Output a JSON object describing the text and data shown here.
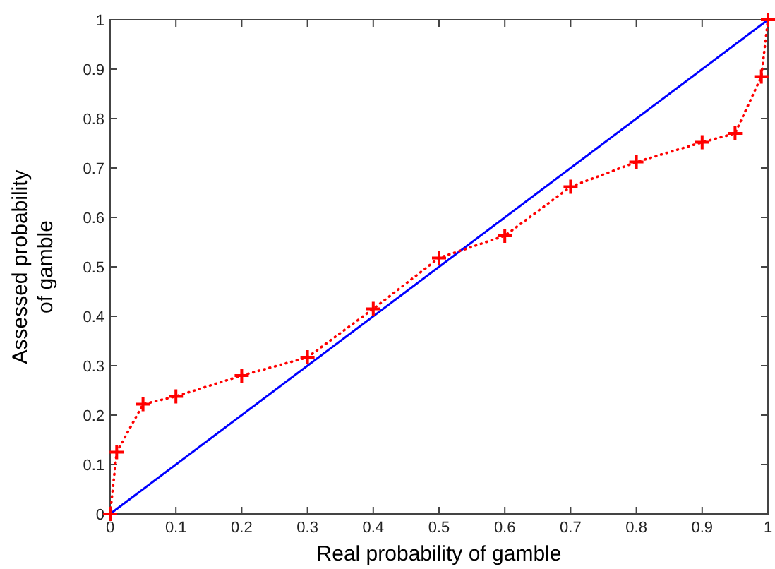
{
  "chart_data": {
    "type": "line",
    "xlabel": "Real probability of gamble",
    "ylabel": "Assessed probability\nof gamble",
    "xlim": [
      0,
      1
    ],
    "ylim": [
      0,
      1
    ],
    "xticks": [
      0,
      0.1,
      0.2,
      0.3,
      0.4,
      0.5,
      0.6,
      0.7,
      0.8,
      0.9,
      1
    ],
    "yticks": [
      0,
      0.1,
      0.2,
      0.3,
      0.4,
      0.5,
      0.6,
      0.7,
      0.8,
      0.9,
      1
    ],
    "grid": false,
    "series": [
      {
        "color": "#0000ff",
        "x": [
          0,
          1
        ],
        "values": [
          0,
          1
        ],
        "line_style": "solid",
        "marker": "none"
      },
      {
        "color": "#ff0000",
        "x": [
          0,
          0.01,
          0.05,
          0.1,
          0.2,
          0.3,
          0.4,
          0.5,
          0.6,
          0.7,
          0.8,
          0.9,
          0.95,
          0.99,
          1
        ],
        "values": [
          0,
          0.125,
          0.222,
          0.238,
          0.28,
          0.317,
          0.415,
          0.518,
          0.563,
          0.662,
          0.712,
          0.752,
          0.77,
          0.885,
          1
        ],
        "line_style": "dotted",
        "marker": "cross"
      }
    ]
  }
}
